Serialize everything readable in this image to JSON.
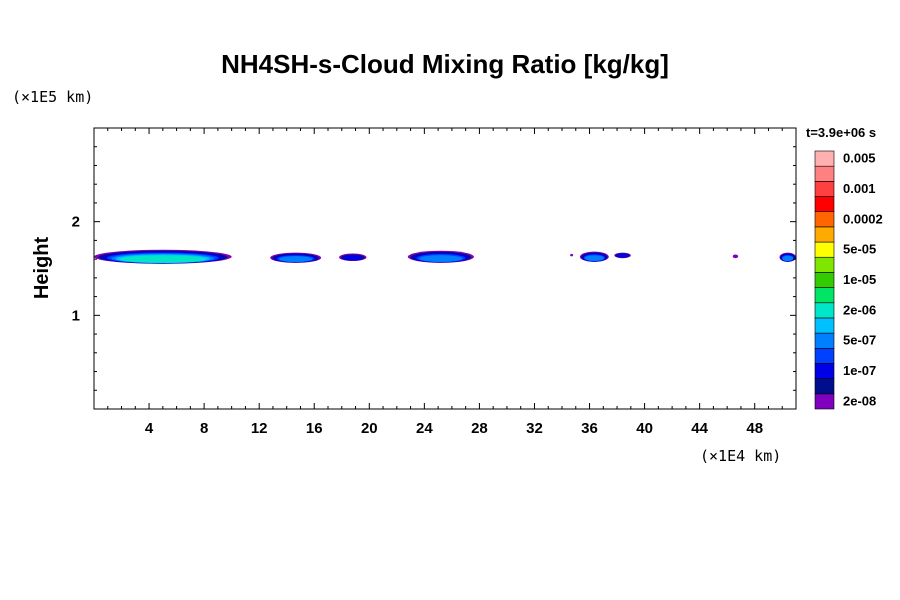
{
  "chart_data": {
    "type": "heatmap",
    "title": "NH4SH-s-Cloud Mixing Ratio [kg/kg]",
    "ylabel": "Height",
    "x_unit_label": "(×1E4 km)",
    "y_unit_label": "(×1E5 km)",
    "time_label": "t=3.9e+06 s",
    "xlim": [
      0,
      51
    ],
    "ylim": [
      0,
      3
    ],
    "x_ticks": [
      4,
      8,
      12,
      16,
      20,
      24,
      28,
      32,
      36,
      40,
      44,
      48
    ],
    "y_ticks": [
      1,
      2
    ],
    "colorbar": {
      "colors": [
        "#7f00bf",
        "#000e8e",
        "#0000e6",
        "#0040ff",
        "#0080ff",
        "#00c0ff",
        "#00e6c8",
        "#00e664",
        "#33cc00",
        "#80e600",
        "#ffff00",
        "#ffaa00",
        "#ff6600",
        "#ff0000",
        "#ff4040",
        "#ff8080",
        "#ffb0b0"
      ],
      "labels": [
        "2e-08",
        "1e-07",
        "5e-07",
        "2e-06",
        "1e-05",
        "5e-05",
        "0.0002",
        "0.001",
        "0.005"
      ]
    },
    "cloud_regions": [
      {
        "x0": 0.0,
        "x1": 10.0,
        "y_base": 1.55,
        "y_top": 1.7,
        "peak": "2e-06"
      },
      {
        "x0": 12.8,
        "x1": 16.5,
        "y_base": 1.56,
        "y_top": 1.67,
        "peak": "5e-07"
      },
      {
        "x0": 17.8,
        "x1": 19.8,
        "y_base": 1.58,
        "y_top": 1.66,
        "peak": "1e-07"
      },
      {
        "x0": 22.8,
        "x1": 27.6,
        "y_base": 1.56,
        "y_top": 1.69,
        "peak": "5e-07"
      },
      {
        "x0": 34.6,
        "x1": 34.8,
        "y_base": 1.63,
        "y_top": 1.65,
        "peak": "2e-08"
      },
      {
        "x0": 35.3,
        "x1": 37.4,
        "y_base": 1.57,
        "y_top": 1.68,
        "peak": "5e-07"
      },
      {
        "x0": 37.8,
        "x1": 39.0,
        "y_base": 1.61,
        "y_top": 1.67,
        "peak": "1e-07"
      },
      {
        "x0": 46.4,
        "x1": 46.8,
        "y_base": 1.61,
        "y_top": 1.65,
        "peak": "2e-08"
      },
      {
        "x0": 49.8,
        "x1": 51.0,
        "y_base": 1.57,
        "y_top": 1.67,
        "peak": "5e-07"
      }
    ]
  }
}
